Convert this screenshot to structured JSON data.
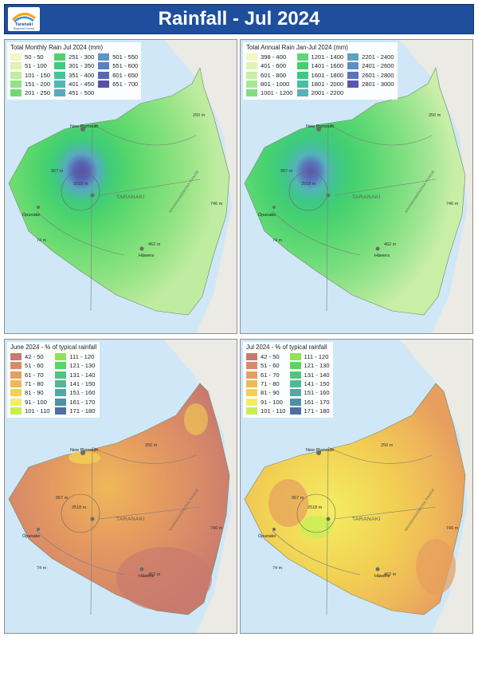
{
  "header": {
    "title": "Rainfall - Jul 2024",
    "logo_name": "Taranaki",
    "logo_sub": "Regional Council"
  },
  "map_labels": {
    "new_plymouth": "New Plymouth",
    "opunake": "Ōpunake",
    "hawera": "Hāwera",
    "taranaki": "TARANAKI",
    "range": "WHANGAMŌMONA RANGE",
    "elev_peak": "2518 m",
    "elev_ring": "967 m",
    "elev_250": "250 m",
    "elev_746": "746 m",
    "elev_74": "74 m",
    "elev_462": "462 m"
  },
  "panels": [
    {
      "id": "monthly",
      "legend_title": "Total Monthly Rain Jul 2024 (mm)",
      "columns": 3,
      "items": [
        {
          "label": "50 - 50",
          "color": "#f4f7bf"
        },
        {
          "label": "51 - 100",
          "color": "#e0f3b0"
        },
        {
          "label": "101 - 150",
          "color": "#bfeca0"
        },
        {
          "label": "151 - 200",
          "color": "#93e383"
        },
        {
          "label": "201 - 250",
          "color": "#6cdc72"
        },
        {
          "label": "251 - 300",
          "color": "#4ed46b"
        },
        {
          "label": "301 - 350",
          "color": "#3ecb7c"
        },
        {
          "label": "351 - 400",
          "color": "#46c29a"
        },
        {
          "label": "401 - 450",
          "color": "#50b7b2"
        },
        {
          "label": "451 - 500",
          "color": "#58a9c2"
        },
        {
          "label": "501 - 550",
          "color": "#5b96c4"
        },
        {
          "label": "551 - 600",
          "color": "#5b7fbf"
        },
        {
          "label": "601 - 650",
          "color": "#5867b4"
        },
        {
          "label": "651 - 700",
          "color": "#5a4ea5"
        }
      ]
    },
    {
      "id": "annual",
      "legend_title": "Total Annual Rain Jan-Jul 2024 (mm)",
      "columns": 3,
      "items": [
        {
          "label": "398 - 400",
          "color": "#f2f6c0"
        },
        {
          "label": "401 - 600",
          "color": "#e2f4b4"
        },
        {
          "label": "601 - 800",
          "color": "#c9eea6"
        },
        {
          "label": "801 - 1000",
          "color": "#a6e795"
        },
        {
          "label": "1001 - 1200",
          "color": "#7fdf80"
        },
        {
          "label": "1201 - 1400",
          "color": "#5cd873"
        },
        {
          "label": "1401 - 1600",
          "color": "#45d06f"
        },
        {
          "label": "1601 - 1800",
          "color": "#3ec886"
        },
        {
          "label": "1801 - 2000",
          "color": "#48bfa4"
        },
        {
          "label": "2001 - 2200",
          "color": "#54b3ba"
        },
        {
          "label": "2201 - 2400",
          "color": "#5aa3c4"
        },
        {
          "label": "2401 - 2600",
          "color": "#5b8ec3"
        },
        {
          "label": "2601 - 2800",
          "color": "#5a75bb"
        },
        {
          "label": "2801 - 3000",
          "color": "#5858aa"
        }
      ]
    },
    {
      "id": "june_pct",
      "legend_title": "June 2024 - % of typical rainfall",
      "columns": 2,
      "items": [
        {
          "label": "42 - 50",
          "color": "#c97a6e"
        },
        {
          "label": "51 - 60",
          "color": "#d98b68"
        },
        {
          "label": "61 - 70",
          "color": "#e79e5e"
        },
        {
          "label": "71 - 80",
          "color": "#efb85a"
        },
        {
          "label": "81 - 90",
          "color": "#f2d152"
        },
        {
          "label": "91 - 100",
          "color": "#f3ee63"
        },
        {
          "label": "101 - 110",
          "color": "#c8ee56"
        },
        {
          "label": "111 - 120",
          "color": "#8fe358"
        },
        {
          "label": "121 - 130",
          "color": "#58d661"
        },
        {
          "label": "131 - 140",
          "color": "#4ec77e"
        },
        {
          "label": "141 - 150",
          "color": "#4fb996"
        },
        {
          "label": "151 - 160",
          "color": "#4fa9a6"
        },
        {
          "label": "161 - 170",
          "color": "#4f8fa8"
        },
        {
          "label": "171 - 180",
          "color": "#4e6fa2"
        }
      ]
    },
    {
      "id": "july_pct",
      "legend_title": "Jul 2024 - % of typical rainfall",
      "columns": 2,
      "items": [
        {
          "label": "42 - 50",
          "color": "#c97a6e"
        },
        {
          "label": "51 - 60",
          "color": "#d98b68"
        },
        {
          "label": "61 - 70",
          "color": "#e79e5e"
        },
        {
          "label": "71 - 80",
          "color": "#efb85a"
        },
        {
          "label": "81 - 90",
          "color": "#f2d152"
        },
        {
          "label": "91 - 100",
          "color": "#f3ee63"
        },
        {
          "label": "101 - 110",
          "color": "#c8ee56"
        },
        {
          "label": "111 - 120",
          "color": "#8fe358"
        },
        {
          "label": "121 - 130",
          "color": "#58d661"
        },
        {
          "label": "131 - 140",
          "color": "#4ec77e"
        },
        {
          "label": "141 - 150",
          "color": "#4fb996"
        },
        {
          "label": "151 - 160",
          "color": "#4fa9a6"
        },
        {
          "label": "161 - 170",
          "color": "#4f8fa8"
        },
        {
          "label": "171 - 180",
          "color": "#4e6fa2"
        }
      ]
    }
  ],
  "colors": {
    "header_bg": "#1f4f9c",
    "sea": "#cfe7f7",
    "land_outside": "#ebeae4"
  }
}
